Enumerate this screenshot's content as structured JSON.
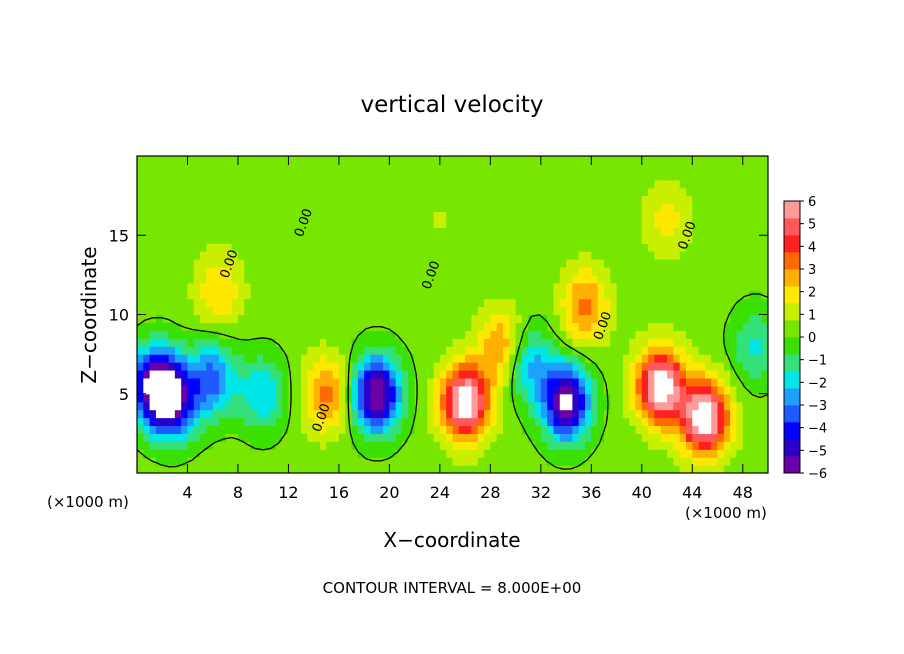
{
  "chart_data": {
    "type": "heatmap",
    "title": "vertical velocity",
    "xlabel": "X−coordinate",
    "ylabel": "Z−coordinate",
    "x_unit_left": "(×1000 m)",
    "x_unit_right": "(×1000 m)",
    "footer": "CONTOUR INTERVAL = 8.000E+00",
    "xlim": [
      0,
      50
    ],
    "ylim": [
      0,
      20
    ],
    "x_ticks": [
      4,
      8,
      12,
      16,
      20,
      24,
      28,
      32,
      36,
      40,
      44,
      48
    ],
    "y_ticks": [
      5,
      10,
      15
    ],
    "contour_label": "0.00",
    "contour_label_positions": [
      [
        7.6,
        13.1
      ],
      [
        13.5,
        15.7
      ],
      [
        14.9,
        3.4
      ],
      [
        23.6,
        12.4
      ],
      [
        37.2,
        9.2
      ],
      [
        43.9,
        14.9
      ]
    ],
    "colorbar": {
      "min": -6,
      "max": 6,
      "tick_labels": [
        "6",
        "5",
        "4",
        "3",
        "2",
        "1",
        "0",
        "−1",
        "−2",
        "−3",
        "−4",
        "−5",
        "−6"
      ],
      "colors": [
        "#6a00a8",
        "#2a00c8",
        "#0000ff",
        "#1e5aff",
        "#1ea0ff",
        "#00e5e5",
        "#33e07a",
        "#3be000",
        "#77e600",
        "#c8ef00",
        "#ffe800",
        "#ffb000",
        "#ff6a00",
        "#ff2020",
        "#ff5a5a",
        "#ff9a9a"
      ]
    },
    "cells": [
      {
        "x": 1.5,
        "z": 5.5,
        "w": -6.5
      },
      {
        "x": 3,
        "z": 4.5,
        "w": -4.5
      },
      {
        "x": 6,
        "z": 6,
        "w": -3.5
      },
      {
        "x": 10,
        "z": 5,
        "w": -2.5
      },
      {
        "x": 6.5,
        "z": 11.5,
        "w": 2
      },
      {
        "x": 15,
        "z": 5,
        "w": 3
      },
      {
        "x": 19,
        "z": 5,
        "w": -6.5
      },
      {
        "x": 26,
        "z": 4.5,
        "w": 6.5
      },
      {
        "x": 29,
        "z": 8,
        "w": 3
      },
      {
        "x": 34,
        "z": 4.5,
        "w": -6.5
      },
      {
        "x": 31,
        "z": 7,
        "w": -3
      },
      {
        "x": 35.5,
        "z": 10.5,
        "w": 3
      },
      {
        "x": 41.5,
        "z": 5.5,
        "w": 6.5
      },
      {
        "x": 45,
        "z": 3.5,
        "w": 6.5
      },
      {
        "x": 49,
        "z": 8,
        "w": -2
      },
      {
        "x": 24,
        "z": 16,
        "w": 0.5
      },
      {
        "x": 42,
        "z": 16,
        "w": 1.5
      }
    ]
  }
}
